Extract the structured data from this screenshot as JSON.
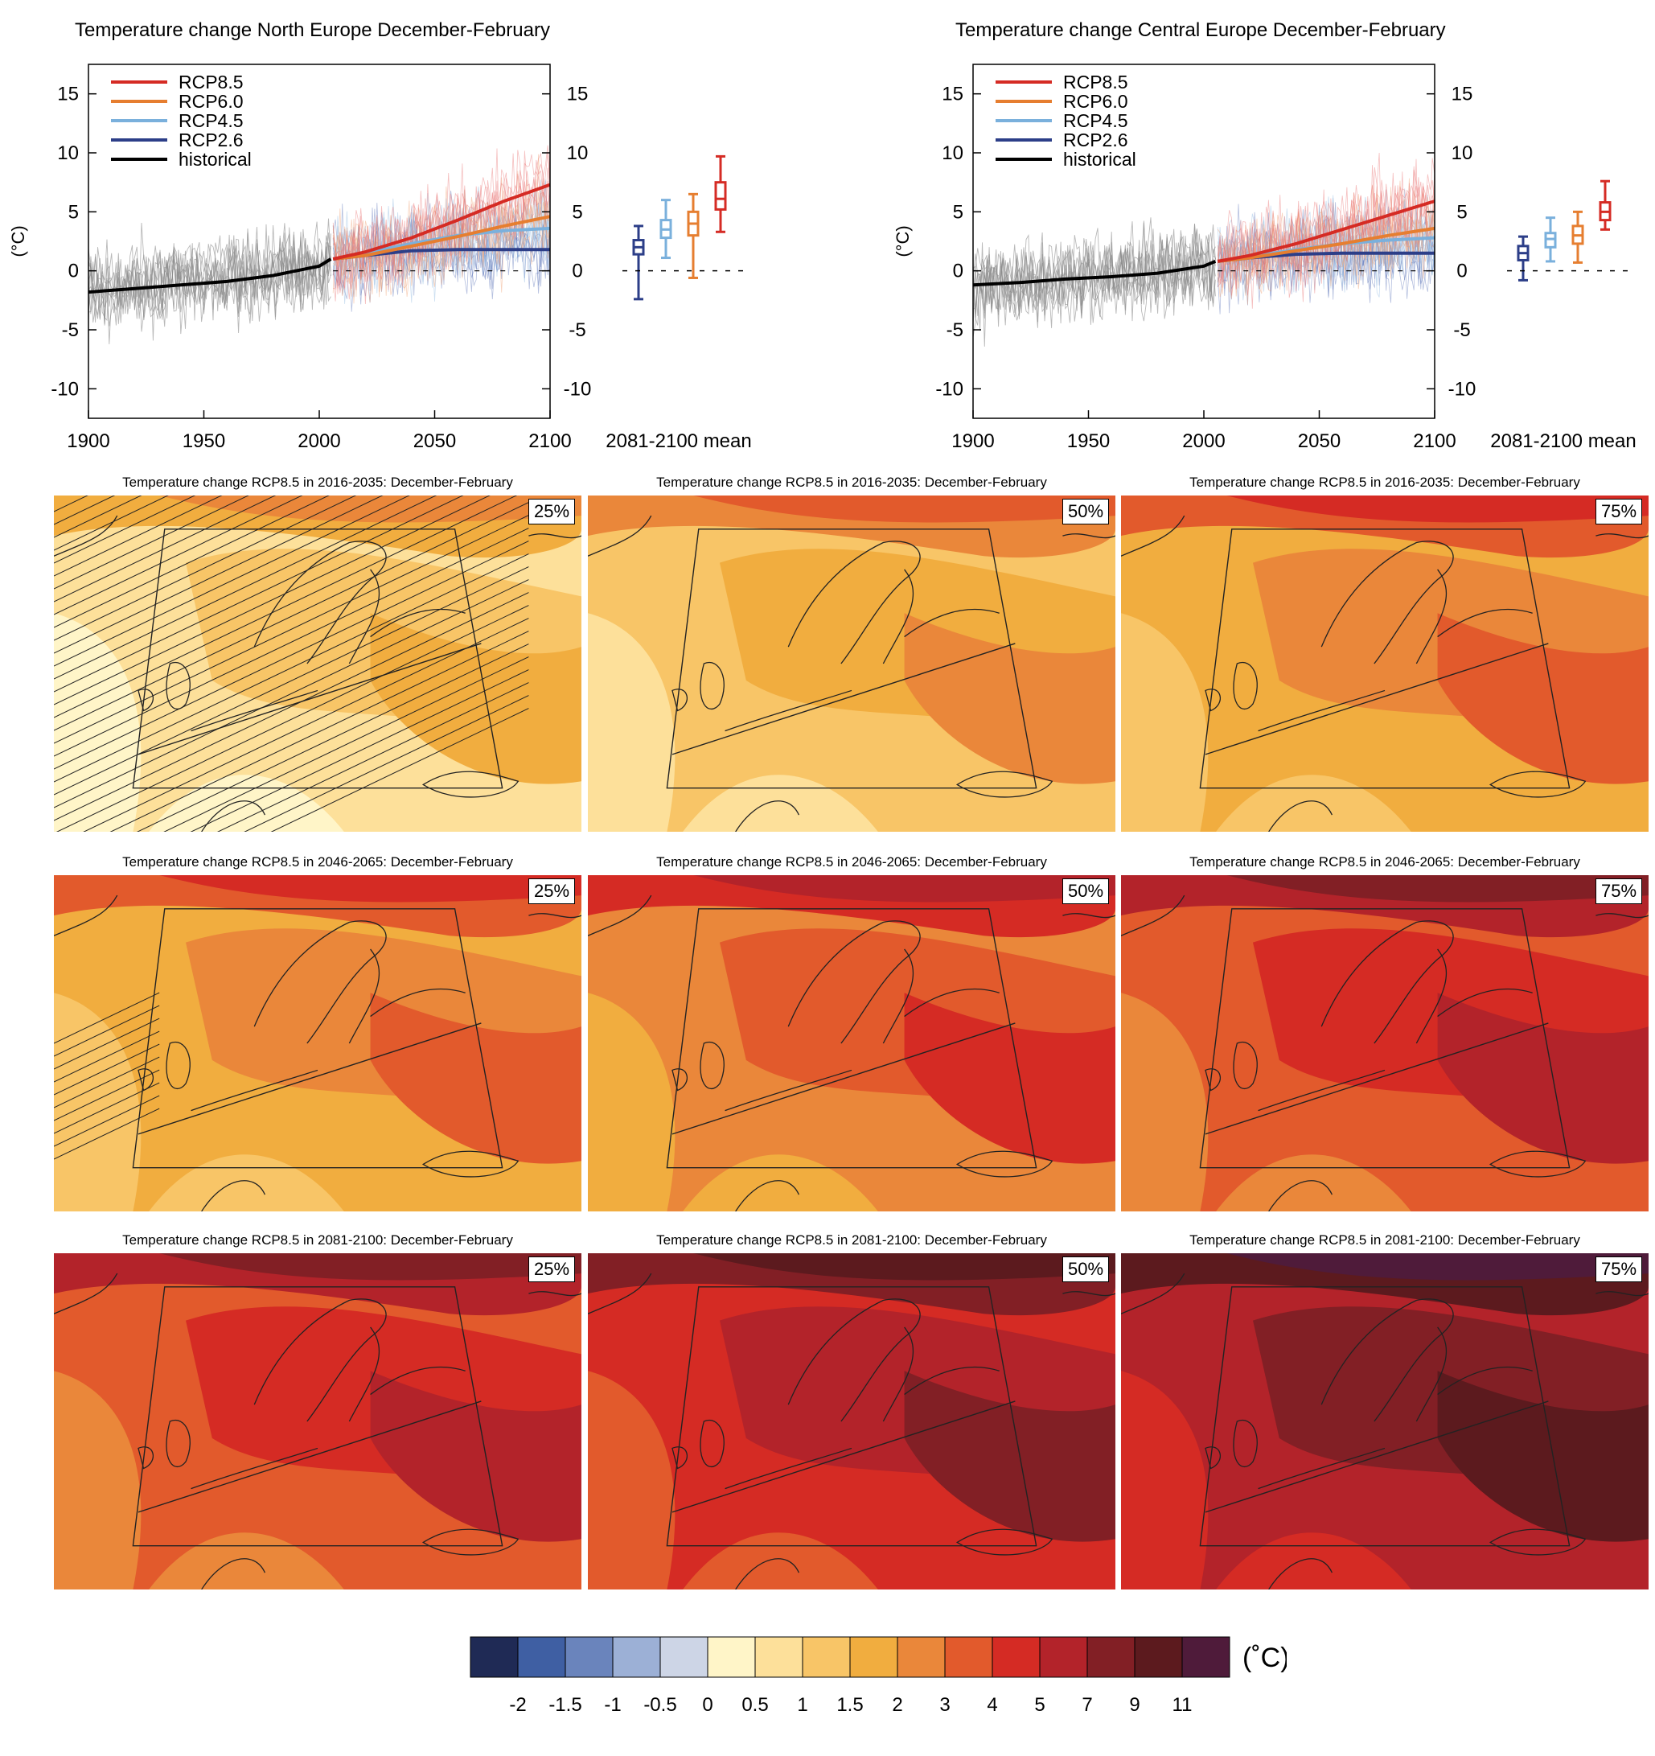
{
  "timeseries": [
    {
      "title": "Temperature change North Europe December-February",
      "ylabel": "(°C)",
      "xticks": [
        "1900",
        "1950",
        "2000",
        "2050",
        "2100"
      ],
      "yticks": [
        "15",
        "10",
        "5",
        "0",
        "-5",
        "-10"
      ],
      "legend": [
        "RCP8.5",
        "RCP6.0",
        "RCP4.5",
        "RCP2.6",
        "historical"
      ],
      "box_label": "2081-2100 mean"
    },
    {
      "title": "Temperature change Central Europe December-February",
      "ylabel": "(°C)",
      "xticks": [
        "1900",
        "1950",
        "2000",
        "2050",
        "2100"
      ],
      "yticks": [
        "15",
        "10",
        "5",
        "0",
        "-5",
        "-10"
      ],
      "legend": [
        "RCP8.5",
        "RCP6.0",
        "RCP4.5",
        "RCP2.6",
        "historical"
      ],
      "box_label": "2081-2100 mean"
    }
  ],
  "maps": {
    "rows": [
      {
        "title": "Temperature change RCP8.5 in 2016-2035: December-February"
      },
      {
        "title": "Temperature change RCP8.5 in 2046-2065: December-February"
      },
      {
        "title": "Temperature change RCP8.5 in 2081-2100: December-February"
      }
    ],
    "percentiles": [
      "25%",
      "50%",
      "75%"
    ]
  },
  "colorbar": {
    "unit": "(˚C)",
    "labels": [
      "-2",
      "-1.5",
      "-1",
      "-0.5",
      "0",
      "0.5",
      "1",
      "1.5",
      "2",
      "3",
      "4",
      "5",
      "7",
      "9",
      "11"
    ],
    "colors": [
      "#1f2a55",
      "#3f5fa3",
      "#6a84bc",
      "#9cb0d6",
      "#cdd5e6",
      "#fff5c8",
      "#fde09a",
      "#f8c567",
      "#f1ad3f",
      "#ea873a",
      "#e25a2c",
      "#d52b24",
      "#b3232a",
      "#821f25",
      "#5c1a1e",
      "#4f1b3a"
    ]
  },
  "chart_data": [
    {
      "type": "line",
      "title": "Temperature change North Europe December-February",
      "ylabel": "(°C)",
      "xlim": [
        1900,
        2100
      ],
      "ylim": [
        -12.5,
        17.5
      ],
      "series": [
        {
          "name": "historical",
          "color": "#000000",
          "x": [
            1900,
            1920,
            1940,
            1960,
            1980,
            2000,
            2005
          ],
          "values": [
            -1.8,
            -1.5,
            -1.2,
            -0.9,
            -0.4,
            0.4,
            1.0
          ]
        },
        {
          "name": "RCP2.6",
          "color": "#2c3e88",
          "x": [
            2006,
            2020,
            2040,
            2060,
            2080,
            2100
          ],
          "values": [
            1.0,
            1.3,
            1.7,
            1.8,
            1.8,
            1.8
          ]
        },
        {
          "name": "RCP4.5",
          "color": "#7ab0dc",
          "x": [
            2006,
            2020,
            2040,
            2060,
            2080,
            2100
          ],
          "values": [
            1.0,
            1.5,
            2.3,
            3.0,
            3.4,
            3.6
          ]
        },
        {
          "name": "RCP6.0",
          "color": "#e67e30",
          "x": [
            2006,
            2020,
            2040,
            2060,
            2080,
            2100
          ],
          "values": [
            1.0,
            1.3,
            2.1,
            2.9,
            3.8,
            4.6
          ]
        },
        {
          "name": "RCP8.5",
          "color": "#d52b24",
          "x": [
            2006,
            2020,
            2040,
            2060,
            2080,
            2100
          ],
          "values": [
            1.0,
            1.6,
            2.8,
            4.3,
            5.9,
            7.3
          ]
        }
      ],
      "boxes": [
        {
          "name": "RCP2.6",
          "color": "#2c3e88",
          "min": -2.4,
          "q1": 1.4,
          "median": 2.0,
          "q3": 2.6,
          "max": 3.8
        },
        {
          "name": "RCP4.5",
          "color": "#7ab0dc",
          "min": 1.1,
          "q1": 2.8,
          "median": 3.5,
          "q3": 4.3,
          "max": 6.0
        },
        {
          "name": "RCP6.0",
          "color": "#e67e30",
          "min": -0.6,
          "q1": 3.0,
          "median": 4.0,
          "q3": 5.0,
          "max": 6.5
        },
        {
          "name": "RCP8.5",
          "color": "#d52b24",
          "min": 3.3,
          "q1": 5.2,
          "median": 6.1,
          "q3": 7.5,
          "max": 9.7
        }
      ]
    },
    {
      "type": "line",
      "title": "Temperature change Central Europe December-February",
      "ylabel": "(°C)",
      "xlim": [
        1900,
        2100
      ],
      "ylim": [
        -12.5,
        17.5
      ],
      "series": [
        {
          "name": "historical",
          "color": "#000000",
          "x": [
            1900,
            1920,
            1940,
            1960,
            1980,
            2000,
            2005
          ],
          "values": [
            -1.2,
            -1.0,
            -0.7,
            -0.5,
            -0.2,
            0.4,
            0.8
          ]
        },
        {
          "name": "RCP2.6",
          "color": "#2c3e88",
          "x": [
            2006,
            2020,
            2040,
            2060,
            2080,
            2100
          ],
          "values": [
            0.8,
            1.1,
            1.4,
            1.5,
            1.5,
            1.5
          ]
        },
        {
          "name": "RCP4.5",
          "color": "#7ab0dc",
          "x": [
            2006,
            2020,
            2040,
            2060,
            2080,
            2100
          ],
          "values": [
            0.8,
            1.2,
            1.8,
            2.3,
            2.6,
            2.8
          ]
        },
        {
          "name": "RCP6.0",
          "color": "#e67e30",
          "x": [
            2006,
            2020,
            2040,
            2060,
            2080,
            2100
          ],
          "values": [
            0.8,
            1.1,
            1.7,
            2.3,
            3.0,
            3.6
          ]
        },
        {
          "name": "RCP8.5",
          "color": "#d52b24",
          "x": [
            2006,
            2020,
            2040,
            2060,
            2080,
            2100
          ],
          "values": [
            0.8,
            1.3,
            2.3,
            3.5,
            4.7,
            5.9
          ]
        }
      ],
      "boxes": [
        {
          "name": "RCP2.6",
          "color": "#2c3e88",
          "min": -0.8,
          "q1": 0.9,
          "median": 1.5,
          "q3": 2.1,
          "max": 2.9
        },
        {
          "name": "RCP4.5",
          "color": "#7ab0dc",
          "min": 0.8,
          "q1": 2.0,
          "median": 2.7,
          "q3": 3.2,
          "max": 4.5
        },
        {
          "name": "RCP6.0",
          "color": "#e67e30",
          "min": 0.7,
          "q1": 2.3,
          "median": 3.0,
          "q3": 3.8,
          "max": 5.0
        },
        {
          "name": "RCP8.5",
          "color": "#d52b24",
          "min": 3.5,
          "q1": 4.3,
          "median": 5.0,
          "q3": 5.8,
          "max": 7.6
        }
      ]
    }
  ]
}
